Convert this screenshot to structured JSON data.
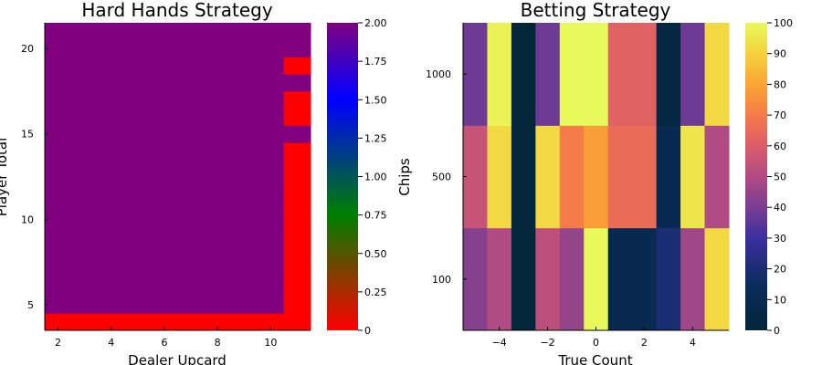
{
  "chart_data": [
    {
      "type": "heatmap",
      "title": "Hard Hands Strategy",
      "xlabel": "Dealer Upcard",
      "ylabel": "Player Total",
      "x": [
        2,
        3,
        4,
        5,
        6,
        7,
        8,
        9,
        10,
        11
      ],
      "y": [
        4,
        5,
        6,
        7,
        8,
        9,
        10,
        11,
        12,
        13,
        14,
        15,
        16,
        17,
        18,
        19,
        20,
        21
      ],
      "xlim": [
        1.5,
        11.5
      ],
      "ylim": [
        3.5,
        21.5
      ],
      "xticks": [
        2,
        4,
        6,
        8,
        10
      ],
      "yticks": [
        5,
        10,
        15,
        20
      ],
      "x_tick_labels": [
        "2",
        "4",
        "6",
        "8",
        "10"
      ],
      "y_tick_labels": [
        "5",
        "10",
        "15",
        "20"
      ],
      "z": [
        [
          0,
          0,
          0,
          0,
          0,
          0,
          0,
          0,
          0,
          0
        ],
        [
          2,
          2,
          2,
          2,
          2,
          2,
          2,
          2,
          2,
          0
        ],
        [
          2,
          2,
          2,
          2,
          2,
          2,
          2,
          2,
          2,
          0
        ],
        [
          2,
          2,
          2,
          2,
          2,
          2,
          2,
          2,
          2,
          0
        ],
        [
          2,
          2,
          2,
          2,
          2,
          2,
          2,
          2,
          2,
          0
        ],
        [
          2,
          2,
          2,
          2,
          2,
          2,
          2,
          2,
          2,
          0
        ],
        [
          2,
          2,
          2,
          2,
          2,
          2,
          2,
          2,
          2,
          0
        ],
        [
          2,
          2,
          2,
          2,
          2,
          2,
          2,
          2,
          2,
          0
        ],
        [
          2,
          2,
          2,
          2,
          2,
          2,
          2,
          2,
          2,
          0
        ],
        [
          2,
          2,
          2,
          2,
          2,
          2,
          2,
          2,
          2,
          0
        ],
        [
          2,
          2,
          2,
          2,
          2,
          2,
          2,
          2,
          2,
          0
        ],
        [
          2,
          2,
          2,
          2,
          2,
          2,
          2,
          2,
          2,
          2
        ],
        [
          2,
          2,
          2,
          2,
          2,
          2,
          2,
          2,
          2,
          0
        ],
        [
          2,
          2,
          2,
          2,
          2,
          2,
          2,
          2,
          2,
          0
        ],
        [
          2,
          2,
          2,
          2,
          2,
          2,
          2,
          2,
          2,
          2
        ],
        [
          2,
          2,
          2,
          2,
          2,
          2,
          2,
          2,
          2,
          0
        ],
        [
          2,
          2,
          2,
          2,
          2,
          2,
          2,
          2,
          2,
          2
        ],
        [
          2,
          2,
          2,
          2,
          2,
          2,
          2,
          2,
          2,
          2
        ]
      ],
      "colorbar": {
        "range": [
          0,
          2
        ],
        "ticks": [
          0,
          0.25,
          0.5,
          0.75,
          1.0,
          1.25,
          1.5,
          1.75,
          2.0
        ],
        "tick_labels": [
          "0",
          "0.25",
          "0.50",
          "0.75",
          "1.00",
          "1.25",
          "1.50",
          "1.75",
          "2.00"
        ],
        "stops": [
          [
            "0",
            "#ff0000"
          ],
          [
            "0.375",
            "#008000"
          ],
          [
            "0.75",
            "#0000ff"
          ],
          [
            "1",
            "#800080"
          ]
        ]
      },
      "grid": false
    },
    {
      "type": "heatmap",
      "title": "Betting Strategy",
      "xlabel": "True Count",
      "ylabel": "Chips",
      "x": [
        -5,
        -4,
        -3,
        -2,
        -1,
        0,
        1,
        2,
        3,
        4,
        5
      ],
      "y_categories": [
        "100",
        "500",
        "1000"
      ],
      "xlim": [
        -5.5,
        5.5
      ],
      "xticks": [
        -4,
        -2,
        0,
        2,
        4
      ],
      "x_tick_labels": [
        "−4",
        "−2",
        "0",
        "2",
        "4"
      ],
      "z": [
        [
          42,
          50,
          0,
          53,
          45,
          100,
          10,
          10,
          20,
          47,
          92
        ],
        [
          55,
          92,
          0,
          92,
          70,
          78,
          65,
          65,
          10,
          95,
          50
        ],
        [
          38,
          98,
          0,
          38,
          100,
          100,
          62,
          62,
          3,
          38,
          92
        ]
      ],
      "colorbar": {
        "range": [
          0,
          100
        ],
        "ticks": [
          0,
          10,
          20,
          30,
          40,
          50,
          60,
          70,
          80,
          90,
          100
        ],
        "tick_labels": [
          "0",
          "10",
          "20",
          "30",
          "40",
          "50",
          "60",
          "70",
          "80",
          "90",
          "100"
        ],
        "stops": [
          [
            "0",
            "#03263a"
          ],
          [
            "0.15",
            "#0b2c5c"
          ],
          [
            "0.30",
            "#3b2f9e"
          ],
          [
            "0.40",
            "#7a3e91"
          ],
          [
            "0.50",
            "#b04b83"
          ],
          [
            "0.60",
            "#dc5c6a"
          ],
          [
            "0.70",
            "#f57b48"
          ],
          [
            "0.80",
            "#faa532"
          ],
          [
            "0.90",
            "#f4d13e"
          ],
          [
            "1",
            "#e8fa5b"
          ]
        ]
      },
      "grid": false
    }
  ]
}
